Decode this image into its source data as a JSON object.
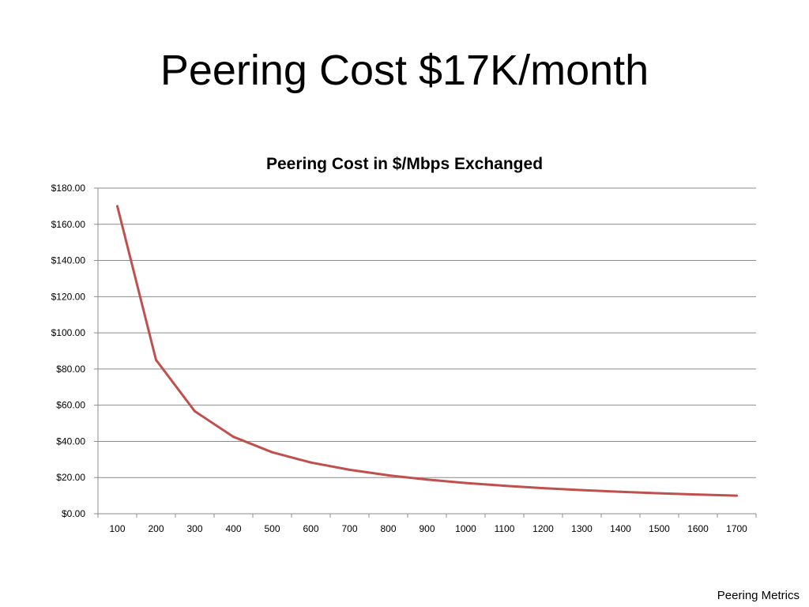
{
  "slide": {
    "title": "Peering Cost $17K/month",
    "footer": "Peering Metrics"
  },
  "chart_data": {
    "type": "line",
    "title": "Peering Cost in $/Mbps Exchanged",
    "xlabel": "",
    "ylabel": "",
    "categories": [
      "100",
      "200",
      "300",
      "400",
      "500",
      "600",
      "700",
      "800",
      "900",
      "1000",
      "1100",
      "1200",
      "1300",
      "1400",
      "1500",
      "1600",
      "1700"
    ],
    "series": [
      {
        "color": "#c0504d",
        "values": [
          170.0,
          85.0,
          56.67,
          42.5,
          34.0,
          28.33,
          24.29,
          21.25,
          18.89,
          17.0,
          15.45,
          14.17,
          13.08,
          12.14,
          11.33,
          10.63,
          10.0
        ]
      }
    ],
    "ylim": [
      0,
      180
    ],
    "ytick_step": 20,
    "ytick_format": "$0.00",
    "grid": true,
    "legend": "none"
  }
}
